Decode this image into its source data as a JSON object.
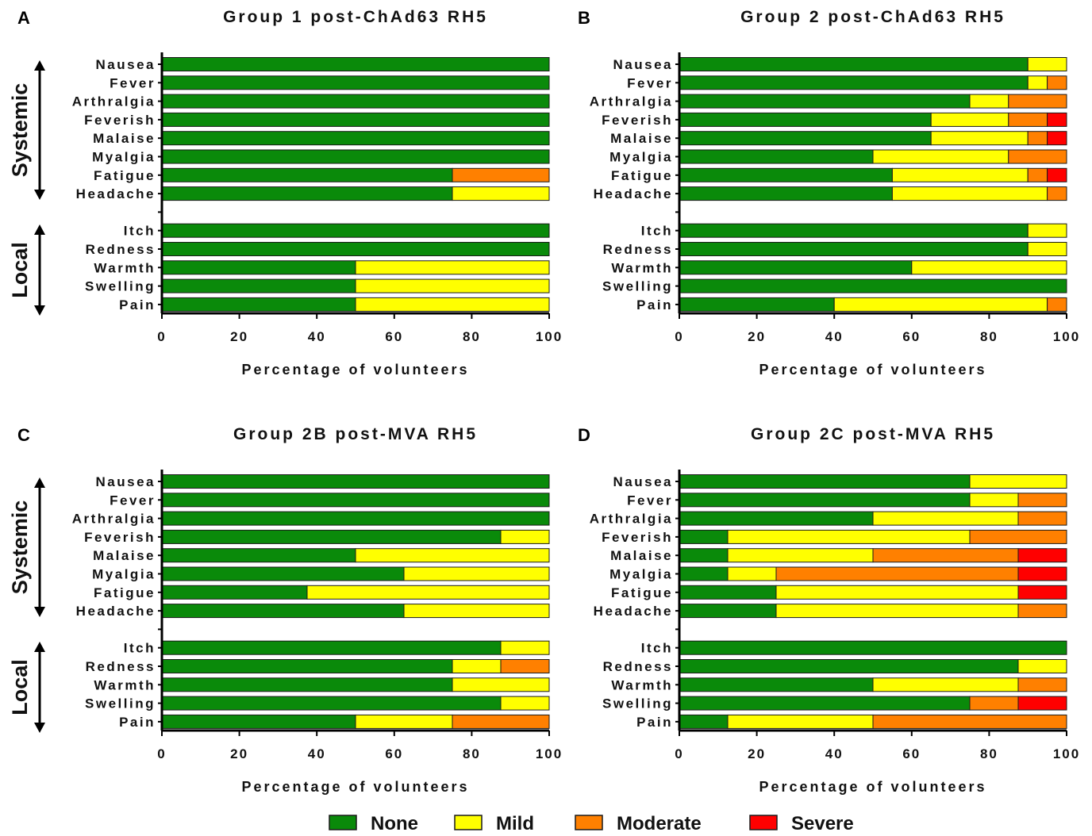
{
  "chart_data": [
    {
      "type": "bar",
      "stacked": true,
      "orientation": "horizontal",
      "panel_label": "A",
      "title": "Group 1 post-ChAd63 RH5",
      "xlabel": "Percentage of volunteers",
      "xlim": [
        0,
        100
      ],
      "xticks": [
        "0",
        "20",
        "40",
        "60",
        "80",
        "100"
      ],
      "group_labels": {
        "systemic": "Systemic",
        "local": "Local"
      },
      "systemic_categories": [
        "Nausea",
        "Fever",
        "Arthralgia",
        "Feverish",
        "Malaise",
        "Myalgia",
        "Fatigue",
        "Headache"
      ],
      "local_categories": [
        "Itch",
        "Redness",
        "Warmth",
        "Swelling",
        "Pain"
      ],
      "systemic": [
        [
          100,
          0,
          0,
          0
        ],
        [
          100,
          0,
          0,
          0
        ],
        [
          100,
          0,
          0,
          0
        ],
        [
          100,
          0,
          0,
          0
        ],
        [
          100,
          0,
          0,
          0
        ],
        [
          100,
          0,
          0,
          0
        ],
        [
          75,
          0,
          25,
          0
        ],
        [
          75,
          25,
          0,
          0
        ]
      ],
      "local": [
        [
          100,
          0,
          0,
          0
        ],
        [
          100,
          0,
          0,
          0
        ],
        [
          50,
          50,
          0,
          0
        ],
        [
          50,
          50,
          0,
          0
        ],
        [
          50,
          50,
          0,
          0
        ]
      ]
    },
    {
      "type": "bar",
      "stacked": true,
      "orientation": "horizontal",
      "panel_label": "B",
      "title": "Group 2 post-ChAd63 RH5",
      "xlabel": "Percentage of volunteers",
      "xlim": [
        0,
        100
      ],
      "xticks": [
        "0",
        "20",
        "40",
        "60",
        "80",
        "100"
      ],
      "group_labels": {
        "systemic": "",
        "local": ""
      },
      "systemic_categories": [
        "Nausea",
        "Fever",
        "Arthralgia",
        "Feverish",
        "Malaise",
        "Myalgia",
        "Fatigue",
        "Headache"
      ],
      "local_categories": [
        "Itch",
        "Redness",
        "Warmth",
        "Swelling",
        "Pain"
      ],
      "systemic": [
        [
          90,
          10,
          0,
          0
        ],
        [
          90,
          5,
          5,
          0
        ],
        [
          75,
          10,
          15,
          0
        ],
        [
          65,
          20,
          10,
          5
        ],
        [
          65,
          25,
          5,
          5
        ],
        [
          50,
          35,
          15,
          0
        ],
        [
          55,
          35,
          5,
          5
        ],
        [
          55,
          40,
          5,
          0
        ]
      ],
      "local": [
        [
          90,
          10,
          0,
          0
        ],
        [
          90,
          10,
          0,
          0
        ],
        [
          60,
          40,
          0,
          0
        ],
        [
          100,
          0,
          0,
          0
        ],
        [
          40,
          55,
          5,
          0
        ]
      ]
    },
    {
      "type": "bar",
      "stacked": true,
      "orientation": "horizontal",
      "panel_label": "C",
      "title": "Group 2B post-MVA RH5",
      "xlabel": "Percentage of volunteers",
      "xlim": [
        0,
        100
      ],
      "xticks": [
        "0",
        "20",
        "40",
        "60",
        "80",
        "100"
      ],
      "group_labels": {
        "systemic": "Systemic",
        "local": "Local"
      },
      "systemic_categories": [
        "Nausea",
        "Fever",
        "Arthralgia",
        "Feverish",
        "Malaise",
        "Myalgia",
        "Fatigue",
        "Headache"
      ],
      "local_categories": [
        "Itch",
        "Redness",
        "Warmth",
        "Swelling",
        "Pain"
      ],
      "systemic": [
        [
          100,
          0,
          0,
          0
        ],
        [
          100,
          0,
          0,
          0
        ],
        [
          100,
          0,
          0,
          0
        ],
        [
          87.5,
          12.5,
          0,
          0
        ],
        [
          50,
          50,
          0,
          0
        ],
        [
          62.5,
          37.5,
          0,
          0
        ],
        [
          37.5,
          62.5,
          0,
          0
        ],
        [
          62.5,
          37.5,
          0,
          0
        ]
      ],
      "local": [
        [
          87.5,
          12.5,
          0,
          0
        ],
        [
          75,
          12.5,
          12.5,
          0
        ],
        [
          75,
          25,
          0,
          0
        ],
        [
          87.5,
          12.5,
          0,
          0
        ],
        [
          50,
          25,
          25,
          0
        ]
      ]
    },
    {
      "type": "bar",
      "stacked": true,
      "orientation": "horizontal",
      "panel_label": "D",
      "title": "Group 2C post-MVA RH5",
      "xlabel": "Percentage of volunteers",
      "xlim": [
        0,
        100
      ],
      "xticks": [
        "0",
        "20",
        "40",
        "60",
        "80",
        "100"
      ],
      "group_labels": {
        "systemic": "",
        "local": ""
      },
      "systemic_categories": [
        "Nausea",
        "Fever",
        "Arthralgia",
        "Feverish",
        "Malaise",
        "Myalgia",
        "Fatigue",
        "Headache"
      ],
      "local_categories": [
        "Itch",
        "Redness",
        "Warmth",
        "Swelling",
        "Pain"
      ],
      "systemic": [
        [
          75,
          25,
          0,
          0
        ],
        [
          75,
          12.5,
          12.5,
          0
        ],
        [
          50,
          37.5,
          12.5,
          0
        ],
        [
          12.5,
          62.5,
          25,
          0
        ],
        [
          12.5,
          37.5,
          37.5,
          12.5
        ],
        [
          12.5,
          12.5,
          62.5,
          12.5
        ],
        [
          25,
          62.5,
          0,
          12.5
        ],
        [
          25,
          62.5,
          12.5,
          0
        ]
      ],
      "local": [
        [
          100,
          0,
          0,
          0
        ],
        [
          87.5,
          12.5,
          0,
          0
        ],
        [
          50,
          37.5,
          12.5,
          0
        ],
        [
          75,
          0,
          12.5,
          12.5
        ],
        [
          12.5,
          37.5,
          50,
          0
        ]
      ]
    }
  ],
  "legend": {
    "items": [
      {
        "label": "None",
        "color": "#0a8a0a"
      },
      {
        "label": "Mild",
        "color": "#ffff00"
      },
      {
        "label": "Moderate",
        "color": "#ff8000"
      },
      {
        "label": "Severe",
        "color": "#ff0000"
      }
    ],
    "placement": "bottom"
  }
}
